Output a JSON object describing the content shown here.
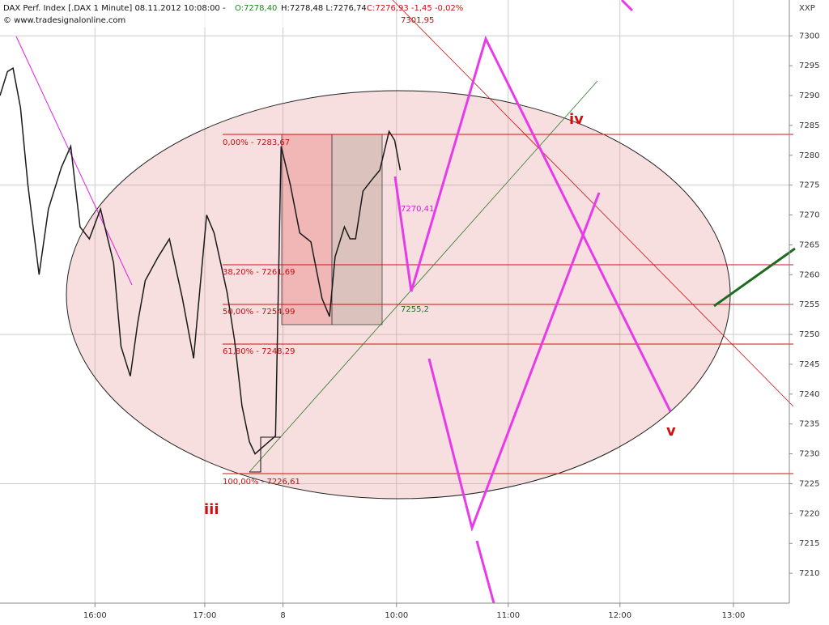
{
  "chart_data": {
    "type": "line",
    "header": {
      "instrument": "DAX Perf. Index [.DAX  1 Minute] 08.11.2012 10:08:00 -",
      "open": "O:7278,40",
      "high_low": "H:7278,48 L:7276,74",
      "close": "C:7276,93 -1,45 -0,02%",
      "source": "© www.tradesignalonline.com",
      "symbol": "XXP"
    },
    "x": [
      0,
      4,
      7,
      11,
      15,
      21,
      26,
      33,
      38,
      43,
      48,
      54,
      61,
      65,
      70,
      74,
      78,
      85,
      91,
      98,
      104,
      111,
      115,
      122,
      126,
      130,
      134,
      137,
      148,
      151,
      156,
      161,
      167,
      173,
      177,
      180,
      185,
      188,
      191,
      195,
      200,
      204,
      209,
      212,
      215
    ],
    "series": [
      {
        "color": "#1a1a1a",
        "values": [
          7290,
          7294,
          7294.6,
          7288,
          7275,
          7260,
          7271,
          7278,
          7281.5,
          7268,
          7266,
          7271,
          7262,
          7248,
          7243,
          7252,
          7259,
          7263,
          7266,
          7256,
          7246,
          7270,
          7267,
          7257,
          7249,
          7238,
          7232,
          7230,
          7233,
          7281.5,
          7275,
          7267,
          7265.5,
          7256,
          7253,
          7263,
          7268,
          7266,
          7266,
          7274,
          7276,
          7277.5,
          7284,
          7282.5,
          7277.5
        ]
      }
    ],
    "xlim": [
      0,
      424
    ],
    "xticks": [
      {
        "value": 51,
        "label": "16:00"
      },
      {
        "value": 110,
        "label": "17:00"
      },
      {
        "value": 152,
        "label": "8"
      },
      {
        "value": 213,
        "label": "10:00"
      },
      {
        "value": 273,
        "label": "11:00"
      },
      {
        "value": 333,
        "label": "12:00"
      },
      {
        "value": 394,
        "label": "13:00"
      }
    ],
    "ylim": [
      7205,
      7306
    ],
    "yticks": [
      7210,
      7215,
      7220,
      7225,
      7230,
      7235,
      7240,
      7245,
      7250,
      7255,
      7260,
      7265,
      7270,
      7275,
      7280,
      7285,
      7290,
      7295,
      7300
    ],
    "fib_labels": [
      "0,00% - 7283,67",
      "38,20% - 7261,69",
      "50,00% - 7254,99",
      "61,80% - 7248,29",
      "100,00% - 7226,61"
    ],
    "annotations": {
      "high_target": "7301,95",
      "magenta_level": "7270,41",
      "green_level": "7255,2",
      "wave_iii": "iii",
      "wave_iv": "iv",
      "wave_v": "v"
    }
  }
}
